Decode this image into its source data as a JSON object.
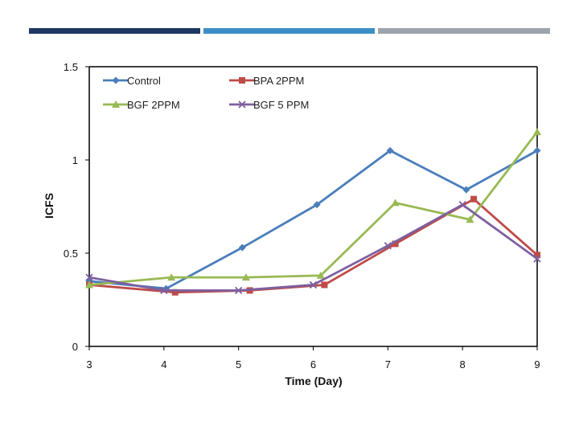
{
  "chart_data": {
    "type": "line",
    "title": "",
    "xlabel": "Time (Day)",
    "ylabel": "ICFS",
    "x": [
      3,
      4,
      5,
      6,
      7,
      8,
      9
    ],
    "x_tick_labels": [
      "3",
      "4",
      "5",
      "6",
      "7",
      "8",
      "9"
    ],
    "y_tick_labels": [
      "0",
      "0.5",
      "1",
      "1.5"
    ],
    "xlim": [
      3,
      9
    ],
    "ylim": [
      0,
      1.5
    ],
    "grid": false,
    "legend_position": "top",
    "series": [
      {
        "name": "Control",
        "color": "#4a7ebb",
        "marker": "diamond",
        "x": [
          3.0,
          4.03,
          5.05,
          6.05,
          7.03,
          8.05,
          9.0
        ],
        "values": [
          0.35,
          0.31,
          0.53,
          0.76,
          1.05,
          0.84,
          1.05
        ]
      },
      {
        "name": "BPA 2PPM",
        "color": "#be4b48",
        "marker": "square",
        "x": [
          3.0,
          4.15,
          5.15,
          6.15,
          7.1,
          8.15,
          9.0
        ],
        "values": [
          0.33,
          0.29,
          0.3,
          0.33,
          0.55,
          0.79,
          0.49
        ]
      },
      {
        "name": "BGF 2PPM",
        "color": "#98b954",
        "marker": "triangle",
        "x": [
          3.0,
          4.1,
          5.1,
          6.1,
          7.1,
          8.1,
          9.0
        ],
        "values": [
          0.33,
          0.37,
          0.37,
          0.38,
          0.77,
          0.68,
          1.15
        ]
      },
      {
        "name": "BGF 5 PPM",
        "color": "#7d60a0",
        "marker": "x",
        "x": [
          3.0,
          4.0,
          5.0,
          6.0,
          7.0,
          8.0,
          9.0
        ],
        "values": [
          0.37,
          0.3,
          0.3,
          0.33,
          0.54,
          0.76,
          0.47
        ]
      }
    ]
  }
}
